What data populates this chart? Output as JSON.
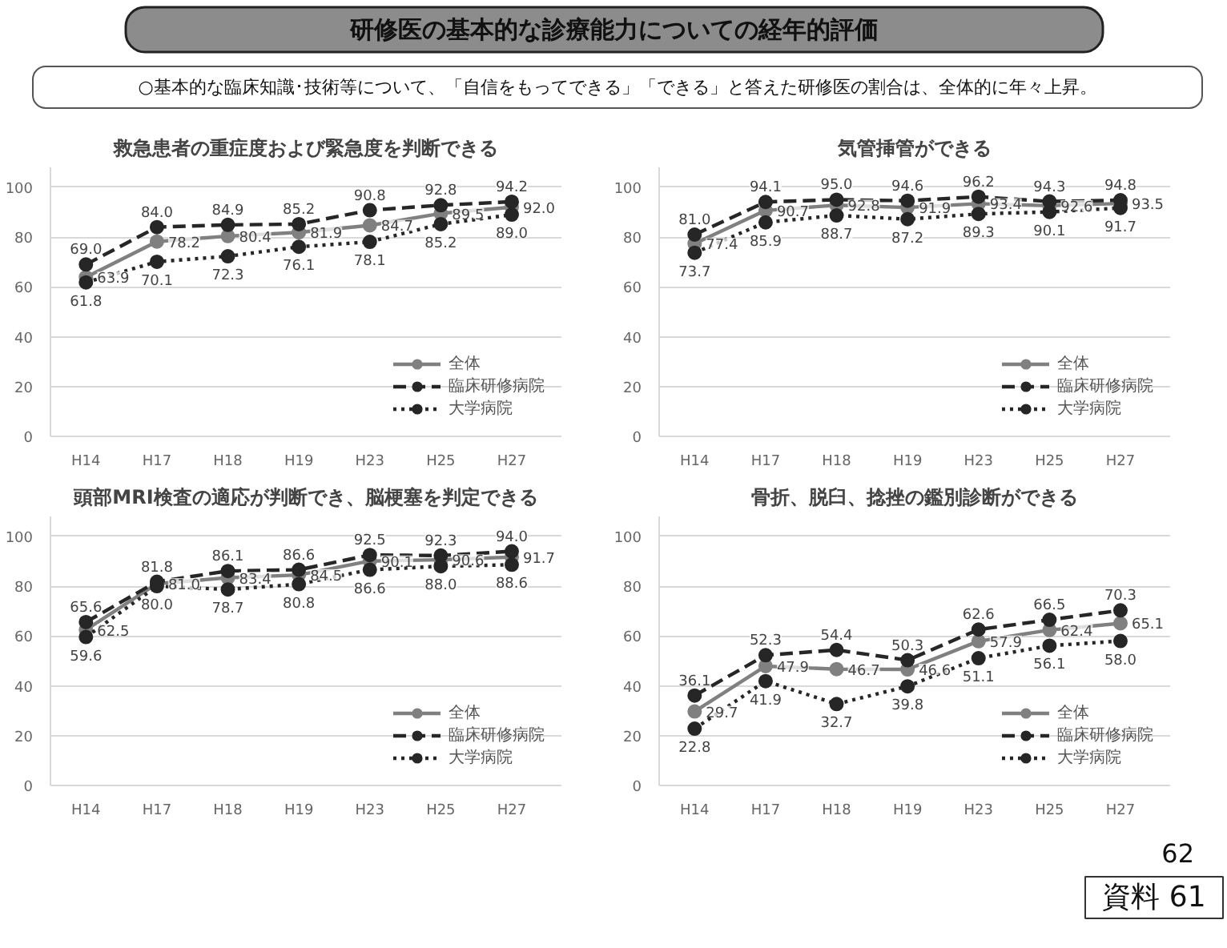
{
  "chart_data": [
    {
      "type": "other",
      "title": "研修医の基本的な診療能力についての経年的評価",
      "subtitle": "○基本的な臨床知識･技術等について、「自信をもってできる」「できる」と答えた研修医の割合は、全体的に年々上昇。",
      "annotations": [
        "62",
        "資料 61"
      ]
    },
    {
      "type": "line",
      "title": "救急患者の重症度および緊急度を判断できる",
      "categories": [
        "H14",
        "H17",
        "H18",
        "H19",
        "H23",
        "H25",
        "H27"
      ],
      "ylim": [
        0,
        108
      ],
      "yticks": [
        0,
        20,
        40,
        60,
        80,
        100
      ],
      "grid": "y",
      "legend": "bottom right",
      "marker": "circle",
      "data_labels": true,
      "series": [
        {
          "name": "全体",
          "color": "#808080",
          "line_style": "solid",
          "values": [
            63.9,
            78.2,
            80.4,
            81.9,
            84.7,
            89.5,
            92.0
          ],
          "value_labels": [
            "63.9",
            "78.2",
            "80.4",
            "81.9",
            "84.7",
            "89.5",
            "92.0"
          ]
        },
        {
          "name": "臨床研修病院",
          "color": "#262626",
          "line_style": "dashed",
          "values": [
            69.0,
            84.0,
            84.9,
            85.2,
            90.8,
            92.8,
            94.2
          ],
          "value_labels": [
            "69.0",
            "84.0",
            "84.9",
            "85.2",
            "90.8",
            "92.8",
            "94.2"
          ]
        },
        {
          "name": "大学病院",
          "color": "#262626",
          "line_style": "dotted",
          "values": [
            61.8,
            70.1,
            72.3,
            76.1,
            78.1,
            85.2,
            89.0
          ],
          "value_labels": [
            "61.8",
            "70.1",
            "72.3",
            "76.1",
            "78.1",
            "85.2",
            "89.0"
          ]
        }
      ]
    },
    {
      "type": "line",
      "title": "気管挿管ができる",
      "categories": [
        "H14",
        "H17",
        "H18",
        "H19",
        "H23",
        "H25",
        "H27"
      ],
      "ylim": [
        0,
        108
      ],
      "yticks": [
        0,
        20,
        40,
        60,
        80,
        100
      ],
      "grid": "y",
      "legend": "bottom right",
      "marker": "circle",
      "data_labels": true,
      "series": [
        {
          "name": "全体",
          "color": "#808080",
          "line_style": "solid",
          "values": [
            77.4,
            90.7,
            92.8,
            91.9,
            93.4,
            92.6,
            93.5
          ]
        },
        {
          "name": "臨床研修病院",
          "color": "#262626",
          "line_style": "dashed",
          "values": [
            81.0,
            94.1,
            95.0,
            94.6,
            96.2,
            94.3,
            94.8
          ],
          "value_labels": [
            "81.0",
            "94.1",
            "95.0",
            "94.6",
            "96.2",
            "94.3",
            "94.8"
          ]
        },
        {
          "name": "大学病院",
          "color": "#262626",
          "line_style": "dotted",
          "values": [
            73.7,
            85.9,
            88.7,
            87.2,
            89.3,
            90.1,
            91.7
          ]
        }
      ]
    },
    {
      "type": "line",
      "title": "頭部MRI検査の適応が判断でき、脳梗塞を判定できる",
      "categories": [
        "H14",
        "H17",
        "H18",
        "H19",
        "H23",
        "H25",
        "H27"
      ],
      "ylim": [
        0,
        108
      ],
      "yticks": [
        0,
        20,
        40,
        60,
        80,
        100
      ],
      "grid": "y",
      "legend": "bottom right",
      "marker": "circle",
      "data_labels": true,
      "series": [
        {
          "name": "全体",
          "color": "#808080",
          "line_style": "solid",
          "values": [
            62.5,
            81.0,
            83.4,
            84.5,
            90.1,
            90.6,
            91.7
          ],
          "value_labels": [
            "62.5",
            "81.0",
            "83.4",
            "84.5",
            "90.1",
            "90.6",
            "91.7"
          ]
        },
        {
          "name": "臨床研修病院",
          "color": "#262626",
          "line_style": "dashed",
          "values": [
            65.6,
            81.8,
            86.1,
            86.6,
            92.5,
            92.3,
            94.0
          ],
          "value_labels": [
            "65.6",
            "81.8",
            "86.1",
            "86.6",
            "92.5",
            "92.3",
            "94.0"
          ]
        },
        {
          "name": "大学病院",
          "color": "#262626",
          "line_style": "dotted",
          "values": [
            59.6,
            80.0,
            78.7,
            80.8,
            86.6,
            88.0,
            88.6
          ],
          "value_labels": [
            "59.6",
            "80.0",
            "78.7",
            "80.8",
            "86.6",
            "88.0",
            "88.6"
          ]
        }
      ]
    },
    {
      "type": "line",
      "title": "骨折、脱臼、捻挫の鑑別診断ができる",
      "categories": [
        "H14",
        "H17",
        "H18",
        "H19",
        "H23",
        "H25",
        "H27"
      ],
      "ylim": [
        0,
        108
      ],
      "yticks": [
        0,
        20,
        40,
        60,
        80,
        100
      ],
      "grid": "y",
      "legend": "bottom right",
      "marker": "circle",
      "data_labels": true,
      "series": [
        {
          "name": "全体",
          "color": "#808080",
          "line_style": "solid",
          "values": [
            29.7,
            47.9,
            46.7,
            46.6,
            57.9,
            62.4,
            65.1
          ]
        },
        {
          "name": "臨床研修病院",
          "color": "#262626",
          "line_style": "dashed",
          "values": [
            36.1,
            52.3,
            54.4,
            50.3,
            62.6,
            66.5,
            70.3
          ]
        },
        {
          "name": "大学病院",
          "color": "#262626",
          "line_style": "dotted",
          "values": [
            22.8,
            41.9,
            32.7,
            39.8,
            51.1,
            56.1,
            58.0
          ],
          "value_labels": [
            "22.8",
            "41.9",
            "32.7",
            "39.8",
            "51.1",
            "56.1",
            "58.0"
          ]
        }
      ]
    }
  ]
}
